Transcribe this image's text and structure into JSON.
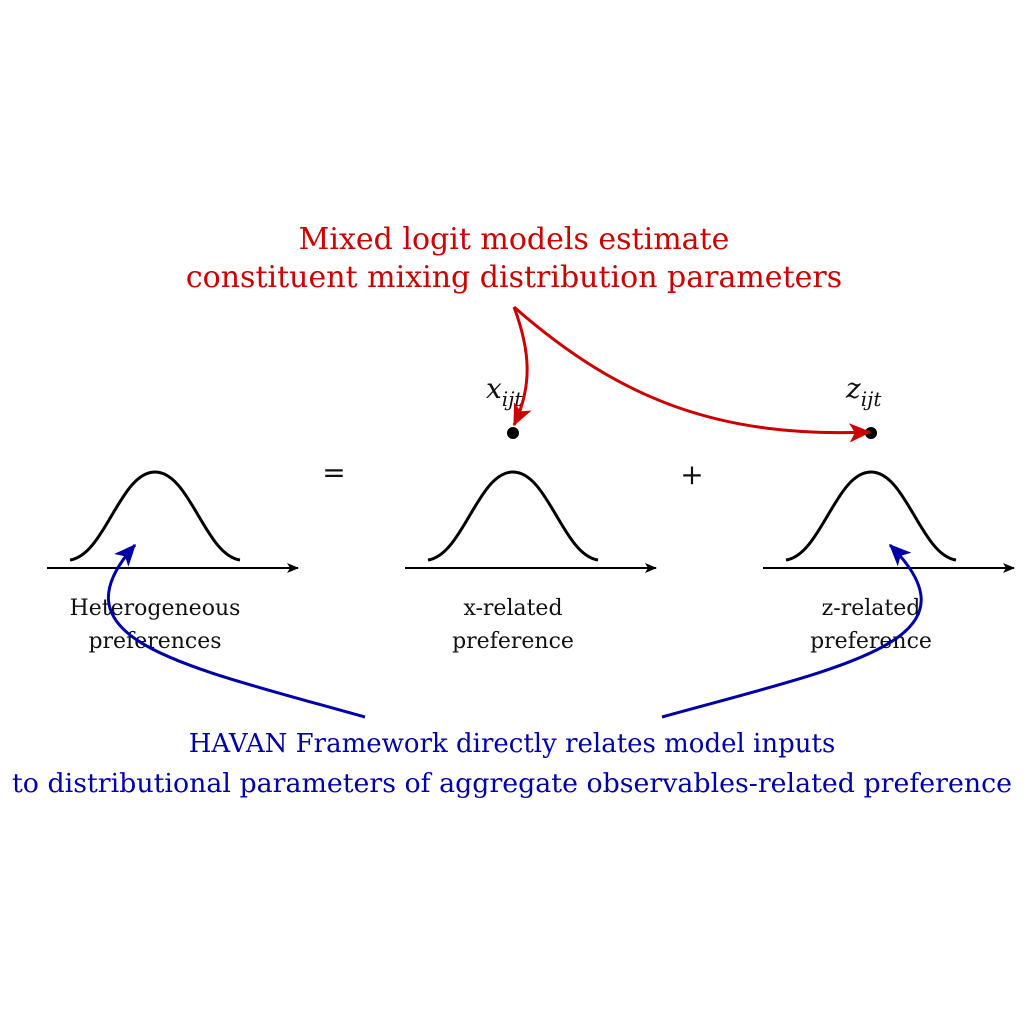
{
  "top_annotation": {
    "lines": [
      "Mixed logit models estimate",
      "constituent mixing distribution parameters"
    ],
    "color": "#cc0000"
  },
  "bottom_annotation": {
    "lines": [
      "HAVAN Framework directly relates model inputs",
      "to distributional parameters of aggregate observables-related preference"
    ],
    "color": "#0000aa"
  },
  "operators": {
    "equals": "=",
    "plus": "+"
  },
  "distributions": [
    {
      "id": "heterogeneous",
      "label_lines": [
        "Heterogeneous",
        "preferences"
      ]
    },
    {
      "id": "x-related",
      "label_lines": [
        "x-related",
        "preference"
      ],
      "variable": {
        "base": "x",
        "subscript": "ijt"
      }
    },
    {
      "id": "z-related",
      "label_lines": [
        "z-related",
        "preference"
      ],
      "variable": {
        "base": "z",
        "subscript": "ijt"
      }
    }
  ]
}
